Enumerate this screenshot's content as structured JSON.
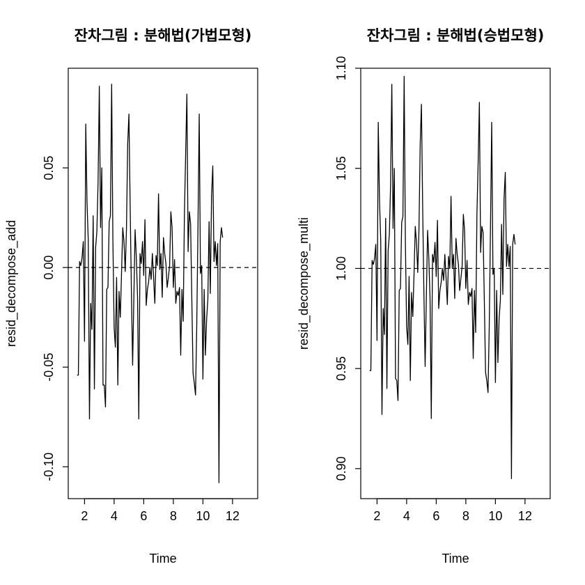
{
  "chart_data": [
    {
      "type": "line",
      "title": "잔차그림 : 분해법(가법모형)",
      "xlabel": "Time",
      "ylabel": "resid_decompose_add",
      "xlim": [
        0.9,
        13.7
      ],
      "ylim": [
        -0.116,
        0.1
      ],
      "x_ticks": [
        2,
        4,
        6,
        8,
        10,
        12
      ],
      "x_tick_labels": [
        "2",
        "4",
        "6",
        "8",
        "10",
        "12"
      ],
      "y_ticks": [
        -0.1,
        -0.05,
        0.0,
        0.05
      ],
      "y_tick_labels": [
        "-0.10",
        "-0.05",
        "0.00",
        "0.05"
      ],
      "reference_line": {
        "y": 0,
        "style": "dashed"
      },
      "grid": false,
      "series": [
        {
          "x_start": 1.5,
          "x_step": 0.0833333333,
          "values": [
            -0.054,
            -0.054,
            0.003,
            0.001,
            0.005,
            0.013,
            -0.037,
            0.072,
            0.033,
            0.014,
            -0.076,
            -0.018,
            -0.031,
            0.026,
            -0.061,
            0.01,
            0.018,
            0.043,
            0.091,
            0.02,
            0.05,
            -0.059,
            -0.059,
            -0.07,
            -0.011,
            -0.01,
            0.023,
            0.026,
            0.092,
            0.014,
            -0.03,
            -0.04,
            -0.005,
            -0.059,
            -0.012,
            -0.025,
            -0.003,
            0.02,
            0.013,
            -0.002,
            0.019,
            0.062,
            0.077,
            0.031,
            -0.012,
            -0.049,
            -0.015,
            0.019,
            0.005,
            -0.015,
            -0.076,
            0.007,
            0.002,
            0.013,
            -0.004,
            0.024,
            -0.019,
            -0.011,
            -0.007,
            0.0,
            -0.006,
            0.007,
            -0.005,
            -0.018,
            0.006,
            0.001,
            0.037,
            -0.001,
            0.007,
            -0.015,
            0.015,
            0.007,
            0.002,
            -0.01,
            -0.005,
            0.001,
            0.028,
            0.02,
            -0.01,
            0.004,
            -0.018,
            -0.012,
            -0.014,
            -0.01,
            -0.044,
            -0.011,
            -0.027,
            0.027,
            0.057,
            0.087,
            0.008,
            0.028,
            0.022,
            -0.016,
            -0.053,
            -0.058,
            -0.064,
            -0.029,
            0.021,
            0.077,
            -0.003,
            0.001,
            -0.056,
            -0.011,
            -0.044,
            -0.026,
            -0.016,
            0.023,
            -0.013,
            0.036,
            0.051,
            0.003,
            0.013,
            0.001,
            0.012,
            -0.108,
            0.013,
            0.02,
            0.015
          ]
        }
      ]
    },
    {
      "type": "line",
      "title": "잔차그림 : 분해법(승법모형)",
      "xlabel": "Time",
      "ylabel": "resid_decompose_multi",
      "xlim": [
        0.9,
        13.7
      ],
      "ylim": [
        0.885,
        1.1
      ],
      "x_ticks": [
        2,
        4,
        6,
        8,
        10,
        12
      ],
      "x_tick_labels": [
        "2",
        "4",
        "6",
        "8",
        "10",
        "12"
      ],
      "y_ticks": [
        0.9,
        0.95,
        1.0,
        1.05,
        1.1
      ],
      "y_tick_labels": [
        "0.90",
        "0.95",
        "1.00",
        "1.05",
        "1.10"
      ],
      "reference_line": {
        "y": 1,
        "style": "dashed"
      },
      "grid": false,
      "series": [
        {
          "x_start": 1.5,
          "x_step": 0.0833333333,
          "values": [
            0.949,
            0.949,
            1.004,
            1.002,
            1.005,
            1.012,
            0.964,
            1.073,
            1.034,
            1.014,
            0.927,
            0.98,
            0.967,
            1.025,
            0.94,
            1.009,
            1.017,
            1.042,
            1.092,
            1.02,
            1.05,
            0.945,
            0.944,
            0.934,
            0.989,
            0.99,
            1.023,
            1.026,
            1.096,
            1.013,
            0.971,
            0.962,
            0.996,
            0.944,
            0.988,
            0.976,
            0.997,
            1.021,
            1.013,
            0.998,
            1.019,
            1.062,
            1.082,
            1.031,
            0.988,
            0.951,
            0.986,
            1.019,
            1.005,
            0.985,
            0.925,
            1.007,
            1.003,
            1.013,
            0.996,
            1.024,
            0.98,
            0.989,
            0.993,
            1.0,
            0.994,
            1.007,
            0.995,
            0.982,
            1.006,
            1.0,
            1.036,
            1.0,
            1.007,
            0.985,
            1.015,
            1.007,
            1.002,
            0.989,
            0.995,
            1.001,
            1.027,
            1.019,
            0.99,
            1.004,
            0.982,
            0.988,
            0.986,
            0.99,
            0.955,
            0.989,
            0.968,
            1.027,
            1.053,
            1.083,
            1.008,
            1.021,
            1.018,
            0.984,
            0.948,
            0.944,
            0.938,
            0.971,
            1.021,
            1.073,
            0.997,
            1.0,
            0.943,
            0.989,
            0.953,
            0.975,
            0.984,
            1.022,
            0.987,
            1.035,
            1.048,
            1.001,
            1.012,
            1.001,
            1.011,
            0.895,
            1.012,
            1.017,
            1.012
          ]
        }
      ]
    }
  ]
}
